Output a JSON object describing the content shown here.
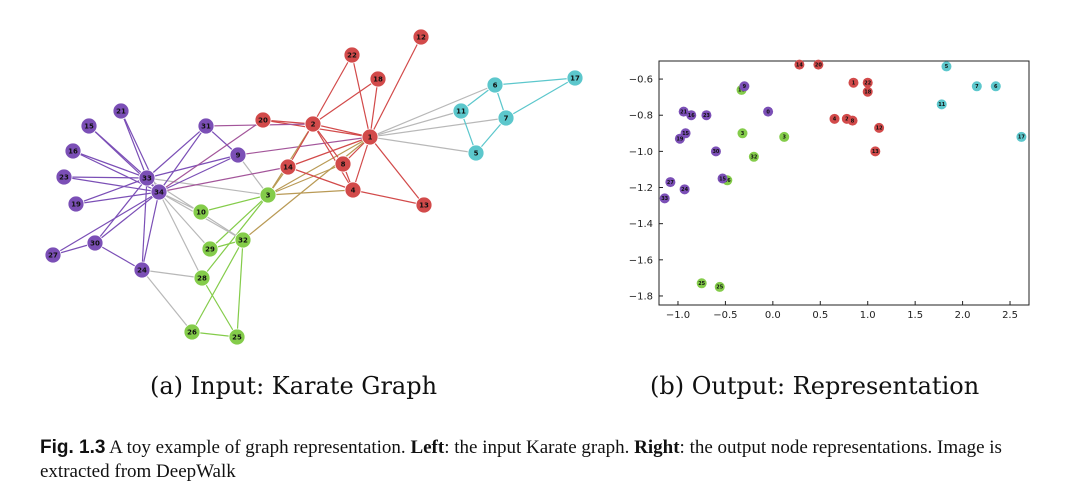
{
  "colors": {
    "purple": "#7b4fb6",
    "red": "#d24a4a",
    "cyan": "#5cc7cc",
    "green": "#84cc4a",
    "edge_gray": "#b8b8b8"
  },
  "graph": {
    "nodes": [
      {
        "id": "1",
        "group": "red"
      },
      {
        "id": "2",
        "group": "red"
      },
      {
        "id": "3",
        "group": "green"
      },
      {
        "id": "4",
        "group": "red"
      },
      {
        "id": "5",
        "group": "cyan"
      },
      {
        "id": "6",
        "group": "cyan"
      },
      {
        "id": "7",
        "group": "cyan"
      },
      {
        "id": "8",
        "group": "red"
      },
      {
        "id": "9",
        "group": "purple"
      },
      {
        "id": "10",
        "group": "green"
      },
      {
        "id": "11",
        "group": "cyan"
      },
      {
        "id": "12",
        "group": "red"
      },
      {
        "id": "13",
        "group": "red"
      },
      {
        "id": "14",
        "group": "red"
      },
      {
        "id": "15",
        "group": "purple"
      },
      {
        "id": "16",
        "group": "purple"
      },
      {
        "id": "17",
        "group": "cyan"
      },
      {
        "id": "18",
        "group": "red"
      },
      {
        "id": "19",
        "group": "purple"
      },
      {
        "id": "20",
        "group": "red"
      },
      {
        "id": "21",
        "group": "purple"
      },
      {
        "id": "22",
        "group": "red"
      },
      {
        "id": "23",
        "group": "purple"
      },
      {
        "id": "24",
        "group": "purple"
      },
      {
        "id": "25",
        "group": "green"
      },
      {
        "id": "26",
        "group": "green"
      },
      {
        "id": "27",
        "group": "purple"
      },
      {
        "id": "28",
        "group": "green"
      },
      {
        "id": "29",
        "group": "green"
      },
      {
        "id": "30",
        "group": "purple"
      },
      {
        "id": "31",
        "group": "purple"
      },
      {
        "id": "32",
        "group": "green"
      },
      {
        "id": "33",
        "group": "purple"
      },
      {
        "id": "34",
        "group": "purple"
      }
    ],
    "edges": [
      [
        "1",
        "2"
      ],
      [
        "1",
        "3"
      ],
      [
        "1",
        "4"
      ],
      [
        "1",
        "5"
      ],
      [
        "1",
        "6"
      ],
      [
        "1",
        "7"
      ],
      [
        "1",
        "8"
      ],
      [
        "1",
        "9"
      ],
      [
        "1",
        "11"
      ],
      [
        "1",
        "12"
      ],
      [
        "1",
        "13"
      ],
      [
        "1",
        "14"
      ],
      [
        "1",
        "18"
      ],
      [
        "1",
        "20"
      ],
      [
        "1",
        "22"
      ],
      [
        "1",
        "32"
      ],
      [
        "2",
        "3"
      ],
      [
        "2",
        "4"
      ],
      [
        "2",
        "8"
      ],
      [
        "2",
        "14"
      ],
      [
        "2",
        "18"
      ],
      [
        "2",
        "20"
      ],
      [
        "2",
        "22"
      ],
      [
        "2",
        "31"
      ],
      [
        "3",
        "4"
      ],
      [
        "3",
        "8"
      ],
      [
        "3",
        "9"
      ],
      [
        "3",
        "10"
      ],
      [
        "3",
        "14"
      ],
      [
        "3",
        "28"
      ],
      [
        "3",
        "29"
      ],
      [
        "3",
        "33"
      ],
      [
        "4",
        "8"
      ],
      [
        "4",
        "13"
      ],
      [
        "4",
        "14"
      ],
      [
        "5",
        "7"
      ],
      [
        "5",
        "11"
      ],
      [
        "6",
        "7"
      ],
      [
        "6",
        "11"
      ],
      [
        "6",
        "17"
      ],
      [
        "7",
        "17"
      ],
      [
        "9",
        "31"
      ],
      [
        "9",
        "33"
      ],
      [
        "9",
        "34"
      ],
      [
        "10",
        "34"
      ],
      [
        "14",
        "34"
      ],
      [
        "15",
        "33"
      ],
      [
        "15",
        "34"
      ],
      [
        "16",
        "33"
      ],
      [
        "16",
        "34"
      ],
      [
        "19",
        "33"
      ],
      [
        "19",
        "34"
      ],
      [
        "20",
        "34"
      ],
      [
        "21",
        "33"
      ],
      [
        "21",
        "34"
      ],
      [
        "23",
        "33"
      ],
      [
        "23",
        "34"
      ],
      [
        "24",
        "26"
      ],
      [
        "24",
        "28"
      ],
      [
        "24",
        "30"
      ],
      [
        "24",
        "33"
      ],
      [
        "24",
        "34"
      ],
      [
        "25",
        "26"
      ],
      [
        "25",
        "28"
      ],
      [
        "25",
        "32"
      ],
      [
        "26",
        "32"
      ],
      [
        "27",
        "30"
      ],
      [
        "27",
        "34"
      ],
      [
        "28",
        "34"
      ],
      [
        "29",
        "32"
      ],
      [
        "29",
        "34"
      ],
      [
        "30",
        "33"
      ],
      [
        "30",
        "34"
      ],
      [
        "31",
        "33"
      ],
      [
        "31",
        "34"
      ],
      [
        "32",
        "33"
      ],
      [
        "32",
        "34"
      ],
      [
        "33",
        "34"
      ]
    ]
  },
  "chart_data": {
    "type": "scatter",
    "xlim": [
      -1.2,
      2.7
    ],
    "ylim": [
      -1.85,
      -0.5
    ],
    "x_ticks": [
      -1.0,
      -0.5,
      0.0,
      0.5,
      1.0,
      1.5,
      2.0,
      2.5
    ],
    "y_ticks": [
      -0.6,
      -0.8,
      -1.0,
      -1.2,
      -1.4,
      -1.6,
      -1.8
    ],
    "x_tick_labels": [
      "−1.0",
      "−0.5",
      "0.0",
      "0.5",
      "1.0",
      "1.5",
      "2.0",
      "2.5"
    ],
    "y_tick_labels": [
      "−0.6",
      "−0.8",
      "−1.0",
      "−1.2",
      "−1.4",
      "−1.6",
      "−1.8"
    ],
    "grid": false,
    "points": [
      {
        "label": "1",
        "x": 0.85,
        "y": -0.62,
        "group": "red"
      },
      {
        "label": "22",
        "x": 1.0,
        "y": -0.62,
        "group": "red"
      },
      {
        "label": "18",
        "x": 1.0,
        "y": -0.67,
        "group": "red"
      },
      {
        "label": "14",
        "x": 0.28,
        "y": -0.52,
        "group": "red"
      },
      {
        "label": "20",
        "x": 0.48,
        "y": -0.52,
        "group": "red"
      },
      {
        "label": "4",
        "x": 0.65,
        "y": -0.82,
        "group": "red"
      },
      {
        "label": "2",
        "x": 0.78,
        "y": -0.82,
        "group": "red"
      },
      {
        "label": "8",
        "x": 0.84,
        "y": -0.83,
        "group": "red"
      },
      {
        "label": "12",
        "x": 1.12,
        "y": -0.87,
        "group": "red"
      },
      {
        "label": "13",
        "x": 1.08,
        "y": -1.0,
        "group": "red"
      },
      {
        "label": "5",
        "x": 1.83,
        "y": -0.53,
        "group": "cyan"
      },
      {
        "label": "7",
        "x": 2.15,
        "y": -0.64,
        "group": "cyan"
      },
      {
        "label": "6",
        "x": 2.35,
        "y": -0.64,
        "group": "cyan"
      },
      {
        "label": "11",
        "x": 1.78,
        "y": -0.74,
        "group": "cyan"
      },
      {
        "label": "17",
        "x": 2.62,
        "y": -0.92,
        "group": "cyan"
      },
      {
        "label": "10",
        "x": -0.33,
        "y": -0.66,
        "group": "green"
      },
      {
        "label": "3",
        "x": -0.32,
        "y": -0.9,
        "group": "green"
      },
      {
        "label": "32",
        "x": -0.2,
        "y": -1.03,
        "group": "green"
      },
      {
        "label": "3",
        "x": 0.12,
        "y": -0.92,
        "group": "green"
      },
      {
        "label": "26",
        "x": -0.48,
        "y": -1.16,
        "group": "green"
      },
      {
        "label": "25",
        "x": -0.75,
        "y": -1.73,
        "group": "green"
      },
      {
        "label": "25",
        "x": -0.56,
        "y": -1.75,
        "group": "green"
      },
      {
        "label": "9",
        "x": -0.3,
        "y": -0.64,
        "group": "purple"
      },
      {
        "label": "0",
        "x": -0.05,
        "y": -0.78,
        "group": "purple"
      },
      {
        "label": "21",
        "x": -0.94,
        "y": -0.78,
        "group": "purple"
      },
      {
        "label": "16",
        "x": -0.86,
        "y": -0.8,
        "group": "purple"
      },
      {
        "label": "23",
        "x": -0.7,
        "y": -0.8,
        "group": "purple"
      },
      {
        "label": "15",
        "x": -0.92,
        "y": -0.9,
        "group": "purple"
      },
      {
        "label": "19",
        "x": -0.98,
        "y": -0.93,
        "group": "purple"
      },
      {
        "label": "30",
        "x": -0.6,
        "y": -1.0,
        "group": "purple"
      },
      {
        "label": "15",
        "x": -0.53,
        "y": -1.15,
        "group": "purple"
      },
      {
        "label": "27",
        "x": -1.08,
        "y": -1.17,
        "group": "purple"
      },
      {
        "label": "24",
        "x": -0.93,
        "y": -1.21,
        "group": "purple"
      },
      {
        "label": "33",
        "x": -1.14,
        "y": -1.26,
        "group": "purple"
      }
    ]
  },
  "subcaptions": {
    "a": "(a) Input: Karate Graph",
    "b": "(b) Output: Representation"
  },
  "caption": {
    "fig_label": "Fig. 1.3",
    "part1": " A toy example of graph representation. ",
    "left_label": "Left",
    "part2": ": the input Karate graph. ",
    "right_label": "Right",
    "part3": ": the output node representations. Image is extracted from DeepWalk"
  }
}
